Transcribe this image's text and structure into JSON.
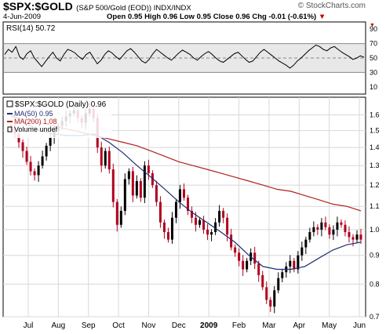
{
  "header": {
    "symbol": "$SPX:$GOLD",
    "description": "(S&P 500/Gold (EOD)) INDX/INDX",
    "date": "4-Jun-2009",
    "open": "Open 0.95",
    "high": "High 0.96",
    "low": "Low 0.95",
    "close": "Close 0.96",
    "chg": "Chg -0.01 (-0.61%)",
    "chg_arrow": "▼",
    "brand": "© StockCharts.com",
    "colors": {
      "down": "#c00000",
      "brand_text": "#555555"
    }
  },
  "chart_data": [
    {
      "type": "line",
      "title": "RSI(14) 50.72",
      "ylim": [
        0,
        100
      ],
      "yticks": [
        10,
        30,
        50,
        70,
        90
      ],
      "reference_lines": [
        30,
        50,
        70
      ],
      "series": [
        {
          "values": [
            55,
            62,
            58,
            66,
            52,
            48,
            56,
            60,
            50,
            44,
            38,
            45,
            52,
            58,
            50,
            46,
            55,
            62,
            60,
            57,
            52,
            48,
            55,
            58,
            50,
            42,
            47,
            55,
            60,
            57,
            52,
            48,
            54,
            60,
            63,
            58,
            52,
            46,
            43,
            48,
            56,
            62,
            58,
            54,
            50,
            47,
            52,
            57,
            61,
            58,
            55,
            50,
            47,
            52,
            56,
            59,
            55,
            50,
            46,
            44,
            48,
            52,
            56,
            58,
            53,
            48,
            44,
            46,
            52,
            58,
            62,
            58,
            54,
            50,
            46,
            43,
            40,
            36,
            40,
            46,
            50,
            55,
            60,
            64,
            68,
            66,
            62,
            60,
            64,
            66,
            62,
            58,
            55,
            52,
            48,
            50,
            53,
            51
          ]
        }
      ],
      "colors": {
        "line": "#000000",
        "reference": "#888888",
        "band": "#e8e8e8"
      }
    },
    {
      "type": "candlestick",
      "title": "$SPX:$GOLD (Daily) 0.96",
      "scale": "log",
      "ylim": [
        0.7,
        1.72
      ],
      "yticks": [
        0.7,
        0.8,
        0.9,
        1.0,
        1.1,
        1.2,
        1.3,
        1.4,
        1.5,
        1.6
      ],
      "x_labels": [
        "Jul",
        "Aug",
        "Sep",
        "Oct",
        "Nov",
        "Dec",
        "2009",
        "Feb",
        "Mar",
        "Apr",
        "May",
        "Jun"
      ],
      "legend": [
        "MA(50) 0.95",
        "MA(200) 1.08",
        "Volume undef"
      ],
      "legend_placement": "top-left",
      "close": [
        1.52,
        1.48,
        1.43,
        1.38,
        1.32,
        1.27,
        1.25,
        1.3,
        1.35,
        1.41,
        1.46,
        1.5,
        1.53,
        1.56,
        1.59,
        1.61,
        1.63,
        1.58,
        1.55,
        1.61,
        1.64,
        1.58,
        1.4,
        1.3,
        1.38,
        1.28,
        1.12,
        1.02,
        1.08,
        1.23,
        1.27,
        1.15,
        1.22,
        1.14,
        1.3,
        1.26,
        1.2,
        1.12,
        1.03,
        0.99,
        0.96,
        1.05,
        1.12,
        1.18,
        1.14,
        1.08,
        1.05,
        1.02,
        1.04,
        1.0,
        0.98,
        0.99,
        1.03,
        1.08,
        1.05,
        0.98,
        0.93,
        0.91,
        0.88,
        0.85,
        0.88,
        0.91,
        0.87,
        0.83,
        0.79,
        0.75,
        0.73,
        0.78,
        0.82,
        0.84,
        0.86,
        0.88,
        0.85,
        0.9,
        0.93,
        0.96,
        0.99,
        1.01,
        1.0,
        1.03,
        1.01,
        0.98,
        1.0,
        1.03,
        1.02,
        0.99,
        0.97,
        0.96,
        0.98,
        0.96
      ],
      "ma50": [
        1.6,
        1.55,
        1.5,
        1.48,
        1.47,
        1.47,
        1.48,
        1.43,
        1.37,
        1.3,
        1.24,
        1.18,
        1.12,
        1.07,
        1.03,
        0.99,
        0.95,
        0.9,
        0.86,
        0.85,
        0.85,
        0.86,
        0.89,
        0.92,
        0.94,
        0.95
      ],
      "ma200": [
        1.59,
        1.57,
        1.55,
        1.53,
        1.51,
        1.49,
        1.47,
        1.45,
        1.43,
        1.41,
        1.38,
        1.35,
        1.32,
        1.3,
        1.28,
        1.26,
        1.24,
        1.22,
        1.2,
        1.18,
        1.17,
        1.15,
        1.13,
        1.11,
        1.1,
        1.08
      ],
      "colors": {
        "up": "#000000",
        "down": "#b0001e",
        "ma50": "#1f2f70",
        "ma200": "#b02020",
        "grid": "#d8d8d8"
      }
    }
  ]
}
